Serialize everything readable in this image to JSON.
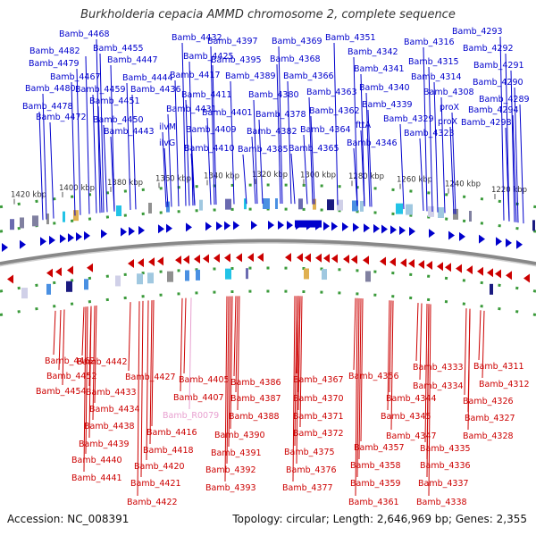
{
  "title": "Burkholderia cepacia AMMD chromosome 2, complete sequence",
  "accession": "Accession: NC_008391",
  "stats": "Topology: circular; Length: 2,646,969 bp; Genes: 2,355",
  "colors": {
    "forward": "#0000cc",
    "reverse": "#cc0000",
    "rna": "#e8a0d0",
    "backbone": "#888888"
  },
  "ticks": [
    "1420 kbp",
    "1400 kbp",
    "1380 kbp",
    "1360 kbp",
    "1340 kbp",
    "1320 kbp",
    "1300 kbp",
    "1280 kbp",
    "1260 kbp",
    "1240 kbp",
    "1220 kbp"
  ],
  "forward_labels": [
    "Bamb_4468",
    "Bamb_4482",
    "Bamb_4479",
    "Bamb_4467",
    "Bamb_4480",
    "Bamb_4478",
    "Bamb_4472",
    "Bamb_4455",
    "Bamb_4447",
    "Bamb_4459",
    "Bamb_4451",
    "Bamb_4450",
    "Bamb_4443",
    "Bamb_4432",
    "Bamb_4425",
    "Bamb_4444",
    "Bamb_4436",
    "Bamb_4431",
    "ilvM",
    "ilvG",
    "Bamb_4397",
    "Bamb_4395",
    "Bamb_4417",
    "Bamb_4411",
    "Bamb_4401",
    "Bamb_4409",
    "Bamb_4410",
    "Bamb_4389",
    "Bamb_4380",
    "Bamb_4378",
    "Bamb_4382",
    "Bamb_4385",
    "Bamb_4369",
    "Bamb_4368",
    "Bamb_4366",
    "Bamb_4363",
    "Bamb_4362",
    "Bamb_4364",
    "Bamb_4365",
    "Bamb_4351",
    "Bamb_4342",
    "Bamb_4341",
    "Bamb_4340",
    "Bamb_4339",
    "fttA",
    "Bamb_4346",
    "Bamb_4316",
    "Bamb_4315",
    "Bamb_4314",
    "Bamb_4308",
    "Bamb_4329",
    "proX",
    "proX",
    "Bamb_4323",
    "Bamb_4293",
    "Bamb_4292",
    "Bamb_4291",
    "Bamb_4290",
    "Bamb_4289",
    "Bamb_4294",
    "Bamb_4298"
  ],
  "reverse_labels": [
    "Bamb_4462",
    "Bamb_4452",
    "Bamb_4454",
    "Bamb_4442",
    "Bamb_4433",
    "Bamb_4434",
    "Bamb_4438",
    "Bamb_4439",
    "Bamb_4440",
    "Bamb_4441",
    "Bamb_4427",
    "Bamb_4416",
    "Bamb_4418",
    "Bamb_4420",
    "Bamb_4421",
    "Bamb_4422",
    "Bamb_4405",
    "Bamb_4407",
    "Bamb_R0079",
    "Bamb_4386",
    "Bamb_4387",
    "Bamb_4388",
    "Bamb_4390",
    "Bamb_4391",
    "Bamb_4392",
    "Bamb_4393",
    "Bamb_4367",
    "Bamb_4370",
    "Bamb_4371",
    "Bamb_4372",
    "Bamb_4375",
    "Bamb_4376",
    "Bamb_4377",
    "Bamb_4356",
    "Bamb_4344",
    "Bamb_4345",
    "Bamb_4347",
    "Bamb_4357",
    "Bamb_4358",
    "Bamb_4359",
    "Bamb_4361",
    "Bamb_4333",
    "Bamb_4334",
    "Bamb_4326",
    "Bamb_4327",
    "Bamb_4328",
    "Bamb_4335",
    "Bamb_4336",
    "Bamb_4337",
    "Bamb_4338",
    "Bamb_4311",
    "Bamb_4312"
  ]
}
